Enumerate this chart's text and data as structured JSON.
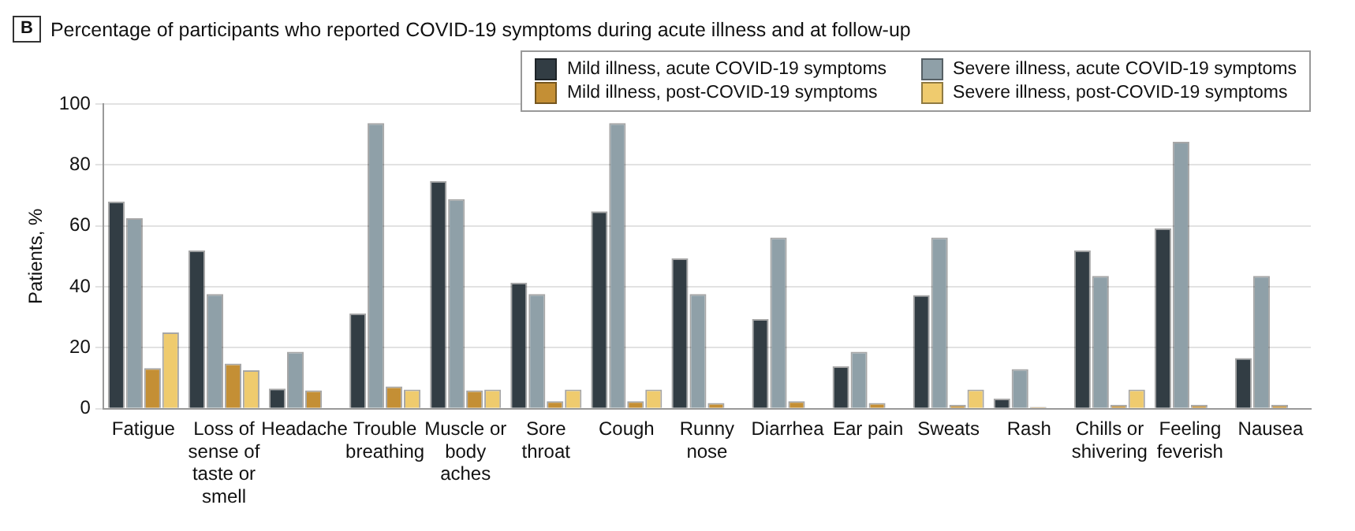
{
  "chart_data": {
    "type": "bar",
    "title": "Percentage of participants who reported COVID-19 symptoms during acute illness and at follow-up",
    "annotations": [
      "B"
    ],
    "ylabel": "Patients, %",
    "categories": [
      "Fatigue",
      "Loss of sense of taste or smell",
      "Headache",
      "Trouble breathing",
      "Muscle or body aches",
      "Sore throat",
      "Cough",
      "Runny nose",
      "Diarrhea",
      "Ear pain",
      "Sweats",
      "Rash",
      "Chills or shivering",
      "Feeling feverish",
      "Nausea"
    ],
    "series": [
      {
        "name": "Mild illness, acute COVID-19 symptoms",
        "color": "#323d44",
        "values": [
          68,
          52,
          6.6,
          31.3,
          74.7,
          41.4,
          64.8,
          49.3,
          29.4,
          13.9,
          37.3,
          3.3,
          52,
          59.2,
          16.6
        ]
      },
      {
        "name": "Severe illness, acute COVID-19 symptoms",
        "color": "#8fa0a8",
        "values": [
          62.5,
          37.6,
          18.7,
          93.7,
          68.8,
          37.6,
          93.7,
          37.6,
          56.2,
          18.7,
          56.2,
          13,
          43.6,
          87.6,
          43.6
        ]
      },
      {
        "name": "Mild illness, post-COVID-19 symptoms",
        "color": "#c48f35",
        "values": [
          13.3,
          14.8,
          6,
          7.3,
          6,
          2.5,
          2.5,
          1.9,
          2.5,
          1.9,
          1.3,
          0.6,
          1.3,
          1.3,
          1.3
        ]
      },
      {
        "name": "Severe illness, post-COVID-19 symptoms",
        "color": "#efcb6e",
        "values": [
          25,
          12.6,
          0,
          6.3,
          6.3,
          6.3,
          6.3,
          0,
          0,
          0,
          6.3,
          0,
          6.3,
          0,
          0
        ]
      }
    ],
    "ylim": [
      0,
      100
    ],
    "yticks": [
      0,
      20,
      40,
      60,
      80,
      100
    ],
    "grid": "y",
    "legend": "top right"
  }
}
